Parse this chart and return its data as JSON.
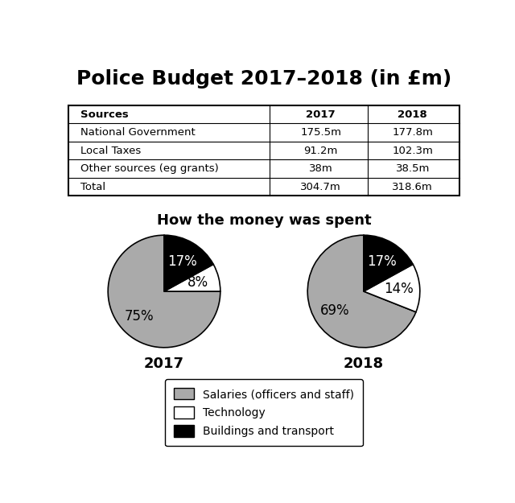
{
  "title": "Police Budget 2017–2018 (in £m)",
  "table": {
    "headers": [
      "Sources",
      "2017",
      "2018"
    ],
    "rows": [
      [
        "National Government",
        "175.5m",
        "177.8m"
      ],
      [
        "Local Taxes",
        "91.2m",
        "102.3m"
      ],
      [
        "Other sources (eg grants)",
        "38m",
        "38.5m"
      ],
      [
        "Total",
        "304.7m",
        "318.6m"
      ]
    ]
  },
  "pie_title": "How the money was spent",
  "pie_2017": {
    "label": "2017",
    "values": [
      75,
      8,
      17
    ],
    "labels": [
      "75%",
      "8%",
      "17%"
    ],
    "colors": [
      "#aaaaaa",
      "#ffffff",
      "#000000"
    ],
    "startangle": 90
  },
  "pie_2018": {
    "label": "2018",
    "values": [
      69,
      14,
      17
    ],
    "labels": [
      "69%",
      "14%",
      "17%"
    ],
    "colors": [
      "#aaaaaa",
      "#ffffff",
      "#000000"
    ],
    "startangle": 90
  },
  "legend_items": [
    {
      "label": "Salaries (officers and staff)",
      "color": "#aaaaaa"
    },
    {
      "label": "Technology",
      "color": "#ffffff"
    },
    {
      "label": "Buildings and transport",
      "color": "#000000"
    }
  ],
  "background_color": "#ffffff",
  "title_fontsize": 18,
  "pie_label_fontsize": 12,
  "pie_year_fontsize": 13,
  "pie_title_fontsize": 13
}
